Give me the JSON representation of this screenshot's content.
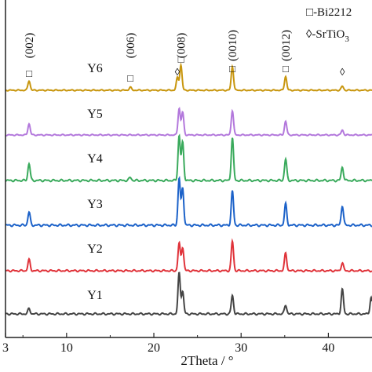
{
  "chart_data": {
    "type": "line",
    "title": "",
    "xlabel": "2Theta / °",
    "ylabel": "",
    "xlim": [
      3,
      45
    ],
    "x_ticks": [
      3,
      10,
      20,
      30,
      40
    ],
    "grid": false,
    "legend": {
      "position": "top-right",
      "entries": [
        {
          "marker": "□",
          "label": "-Bi2212"
        },
        {
          "marker": "◊",
          "label": "-SrTiO",
          "subscript": "3"
        }
      ]
    },
    "peak_labels": [
      {
        "text": "(002)",
        "x": 5.7
      },
      {
        "text": "(006)",
        "x": 17.3
      },
      {
        "text": "(008)",
        "x": 23.1
      },
      {
        "text": "(0010)",
        "x": 29.0
      },
      {
        "text": "(0012)",
        "x": 35.1
      }
    ],
    "phase_markers_on_Y6": [
      {
        "symbol": "□",
        "x": 5.7
      },
      {
        "symbol": "□",
        "x": 17.3
      },
      {
        "symbol": "◊",
        "x": 22.7
      },
      {
        "symbol": "□",
        "x": 23.1
      },
      {
        "symbol": "□",
        "x": 29.0
      },
      {
        "symbol": "□",
        "x": 35.1
      },
      {
        "symbol": "◊",
        "x": 41.6
      }
    ],
    "series": [
      {
        "name": "Y6",
        "color": "#c8960e",
        "peaks": [
          {
            "x": 5.7,
            "height": 0.38
          },
          {
            "x": 17.3,
            "height": 0.12
          },
          {
            "x": 22.7,
            "height": 0.5
          },
          {
            "x": 23.1,
            "height": 1.0
          },
          {
            "x": 29.0,
            "height": 0.95
          },
          {
            "x": 35.1,
            "height": 0.55
          },
          {
            "x": 41.6,
            "height": 0.16
          }
        ]
      },
      {
        "name": "Y5",
        "color": "#b378dc",
        "peaks": [
          {
            "x": 5.7,
            "height": 0.42
          },
          {
            "x": 22.9,
            "height": 1.0
          },
          {
            "x": 23.3,
            "height": 0.85
          },
          {
            "x": 29.0,
            "height": 0.92
          },
          {
            "x": 35.1,
            "height": 0.52
          },
          {
            "x": 41.6,
            "height": 0.18
          }
        ]
      },
      {
        "name": "Y4",
        "color": "#3aaa5c",
        "peaks": [
          {
            "x": 5.7,
            "height": 0.38
          },
          {
            "x": 17.3,
            "height": 0.07
          },
          {
            "x": 22.9,
            "height": 1.0
          },
          {
            "x": 23.3,
            "height": 0.85
          },
          {
            "x": 29.0,
            "height": 0.95
          },
          {
            "x": 35.1,
            "height": 0.48
          },
          {
            "x": 41.6,
            "height": 0.3
          }
        ]
      },
      {
        "name": "Y3",
        "color": "#1c62c9",
        "peaks": [
          {
            "x": 5.7,
            "height": 0.28
          },
          {
            "x": 22.9,
            "height": 1.0
          },
          {
            "x": 23.3,
            "height": 0.8
          },
          {
            "x": 29.0,
            "height": 0.72
          },
          {
            "x": 35.1,
            "height": 0.45
          },
          {
            "x": 41.6,
            "height": 0.42
          }
        ]
      },
      {
        "name": "Y2",
        "color": "#e0333a",
        "peaks": [
          {
            "x": 5.7,
            "height": 0.28
          },
          {
            "x": 22.9,
            "height": 0.7
          },
          {
            "x": 23.3,
            "height": 0.6
          },
          {
            "x": 29.0,
            "height": 0.75
          },
          {
            "x": 35.1,
            "height": 0.45
          },
          {
            "x": 41.6,
            "height": 0.2
          }
        ]
      },
      {
        "name": "Y1",
        "color": "#444444",
        "peaks": [
          {
            "x": 5.7,
            "height": 0.13
          },
          {
            "x": 22.9,
            "height": 1.0
          },
          {
            "x": 23.3,
            "height": 0.55
          },
          {
            "x": 29.0,
            "height": 0.45
          },
          {
            "x": 35.1,
            "height": 0.22
          },
          {
            "x": 41.6,
            "height": 0.6
          },
          {
            "x": 44.9,
            "height": 0.4
          }
        ]
      }
    ]
  }
}
